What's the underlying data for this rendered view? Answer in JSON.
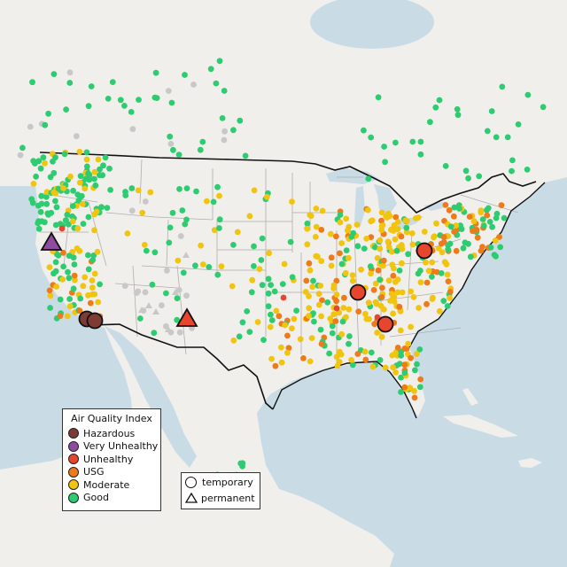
{
  "legend_aqi": {
    "title": "Air Quality Index",
    "items": [
      {
        "label": "Hazardous",
        "color": "#7e3b33"
      },
      {
        "label": "Very Unhealthy",
        "color": "#8e4ba0"
      },
      {
        "label": "Unhealthy",
        "color": "#e8452e"
      },
      {
        "label": "USG",
        "color": "#ee7a1a"
      },
      {
        "label": "Moderate",
        "color": "#f1c40f"
      },
      {
        "label": "Good",
        "color": "#2ecc71"
      }
    ]
  },
  "legend_monitor": {
    "items": [
      {
        "label": "temporary",
        "shape": "circle"
      },
      {
        "label": "permanent",
        "shape": "triangle"
      }
    ]
  },
  "colors": {
    "land": "#f1efec",
    "water": "#c9dce6",
    "state_lines": "#b0aeac",
    "border": "#111111",
    "no_data": "#c8c8c8"
  }
}
